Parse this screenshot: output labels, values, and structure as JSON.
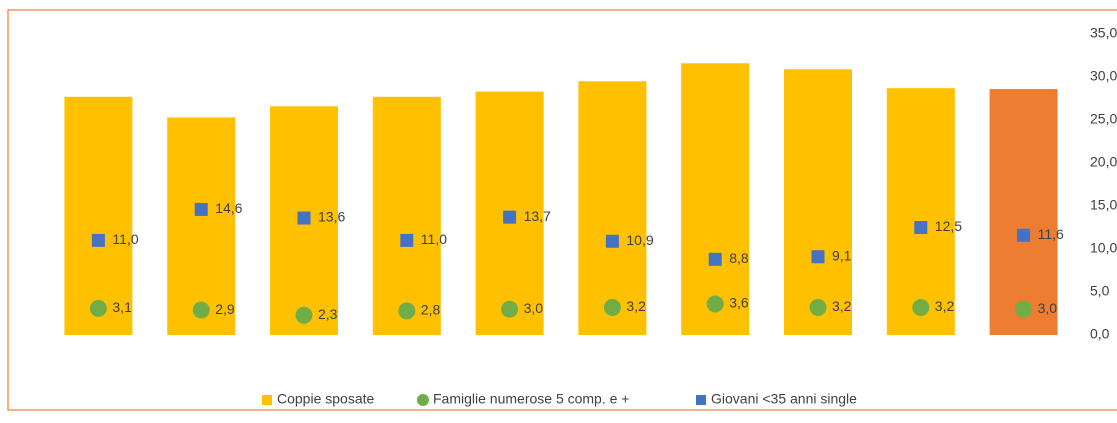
{
  "chart_data": {
    "type": "bar",
    "categories": [
      null,
      null,
      null,
      null,
      null,
      null,
      null,
      null,
      null,
      null
    ],
    "y2lim": [
      0,
      35
    ],
    "y2ticks": [
      {
        "value": 0,
        "label": "0,0"
      },
      {
        "value": 5,
        "label": "5,0"
      },
      {
        "value": 10,
        "label": "10,0"
      },
      {
        "value": 15,
        "label": "15,0"
      },
      {
        "value": 20,
        "label": "20,0"
      },
      {
        "value": 25,
        "label": "25,0"
      },
      {
        "value": 30,
        "label": "30,0"
      },
      {
        "value": 35,
        "label": "35,0"
      }
    ],
    "series": [
      {
        "name": "Coppie sposate",
        "type": "bar",
        "axis": "y2",
        "color": "#FFC000",
        "colors": [
          "#FFC000",
          "#FFC000",
          "#FFC000",
          "#FFC000",
          "#FFC000",
          "#FFC000",
          "#FFC000",
          "#FFC000",
          "#FFC000",
          "#ED7D31"
        ],
        "values": [
          27.7,
          25.3,
          26.6,
          27.7,
          28.3,
          29.5,
          31.6,
          30.9,
          28.7,
          28.6
        ]
      },
      {
        "name": "Famiglie numerose 5 comp. e +",
        "type": "circle",
        "axis": "y2",
        "color": "#70AD47",
        "values": [
          3.1,
          2.9,
          2.3,
          2.8,
          3.0,
          3.2,
          3.6,
          3.2,
          3.2,
          3.0
        ],
        "value_labels": [
          "3,1",
          "2,9",
          "2,3",
          "2,8",
          "3,0",
          "3,2",
          "3,6",
          "3,2",
          "3,2",
          "3,0"
        ]
      },
      {
        "name": "Giovani <35 anni single",
        "type": "square",
        "axis": "y2",
        "color": "#4472C4",
        "values": [
          11.0,
          14.6,
          13.6,
          11.0,
          13.7,
          10.9,
          8.8,
          9.1,
          12.5,
          11.6
        ],
        "value_labels": [
          "11,0",
          "14,6",
          "13,6",
          "11,0",
          "13,7",
          "10,9",
          "8,8",
          "9,1",
          "12,5",
          "11,6"
        ]
      }
    ]
  }
}
